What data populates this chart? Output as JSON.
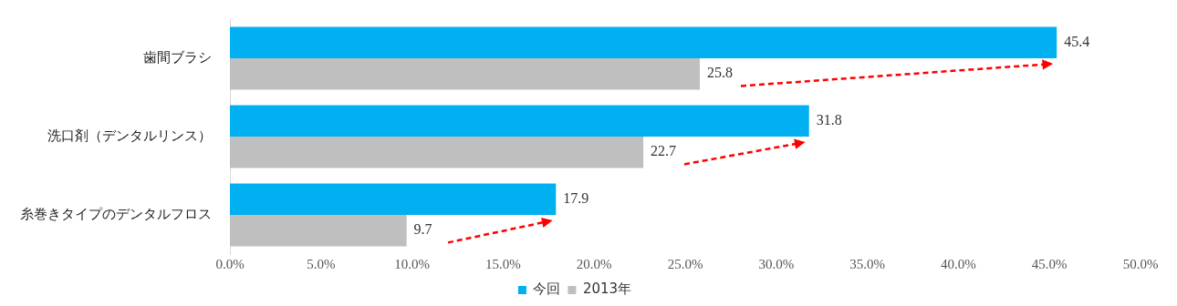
{
  "chart_data": {
    "type": "bar",
    "orientation": "horizontal",
    "categories": [
      "歯間ブラシ",
      "洗口剤（デンタルリンス）",
      "糸巻きタイプのデンタルフロス"
    ],
    "series": [
      {
        "name": "今回",
        "color": "#00b0f0",
        "values": [
          45.4,
          31.8,
          17.9
        ]
      },
      {
        "name": "2013年",
        "color": "#bfbfbf",
        "values": [
          25.8,
          22.7,
          9.7
        ]
      }
    ],
    "xlim": [
      0,
      50
    ],
    "xticks": [
      {
        "value": 0,
        "label": "0.0%"
      },
      {
        "value": 5,
        "label": "5.0%"
      },
      {
        "value": 10,
        "label": "10.0%"
      },
      {
        "value": 15,
        "label": "15.0%"
      },
      {
        "value": 20,
        "label": "20.0%"
      },
      {
        "value": 25,
        "label": "25.0%"
      },
      {
        "value": 30,
        "label": "30.0%"
      },
      {
        "value": 35,
        "label": "35.0%"
      },
      {
        "value": 40,
        "label": "40.0%"
      },
      {
        "value": 45,
        "label": "45.0%"
      },
      {
        "value": 50,
        "label": "50.0%"
      }
    ],
    "data_labels": true,
    "grid": false,
    "legend": "bottom"
  }
}
